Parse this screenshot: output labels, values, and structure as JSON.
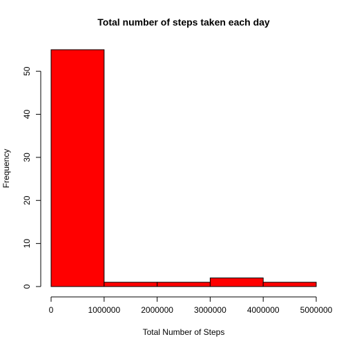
{
  "chart_data": {
    "type": "bar",
    "subtype": "histogram",
    "title": "Total number of steps taken each day",
    "xlabel": "Total Number of Steps",
    "ylabel": "Frequency",
    "bins": [
      {
        "start": 0,
        "end": 1000000,
        "count": 55
      },
      {
        "start": 1000000,
        "end": 2000000,
        "count": 1
      },
      {
        "start": 2000000,
        "end": 3000000,
        "count": 1
      },
      {
        "start": 3000000,
        "end": 4000000,
        "count": 2
      },
      {
        "start": 4000000,
        "end": 5000000,
        "count": 1
      }
    ],
    "xlim": [
      0,
      5000000
    ],
    "ylim": [
      0,
      55
    ],
    "xticks": [
      0,
      1000000,
      2000000,
      3000000,
      4000000,
      5000000
    ],
    "xtick_labels": [
      "0",
      "1000000",
      "2000000",
      "3000000",
      "4000000",
      "5000000"
    ],
    "yticks": [
      0,
      10,
      20,
      30,
      40,
      50
    ],
    "ytick_labels": [
      "0",
      "10",
      "20",
      "30",
      "40",
      "50"
    ],
    "bar_color": "#ff0000",
    "grid": false,
    "legend": "none"
  }
}
